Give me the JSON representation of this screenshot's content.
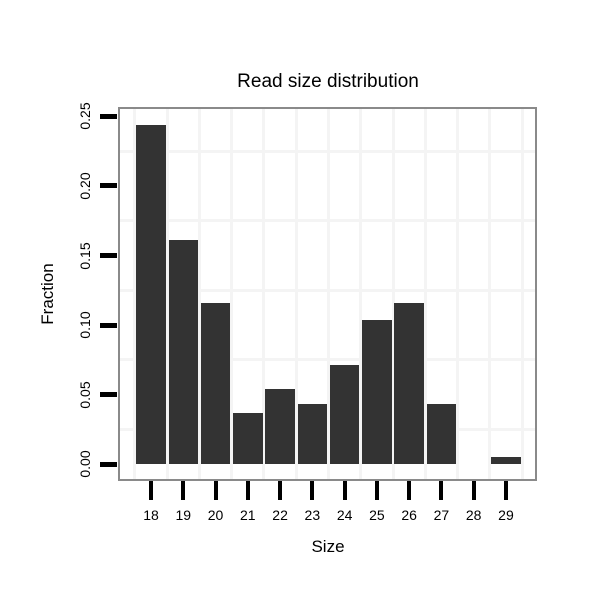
{
  "chart_data": {
    "type": "bar",
    "title": "Read size distribution",
    "xlabel": "Size",
    "ylabel": "Fraction",
    "categories": [
      "18",
      "19",
      "20",
      "21",
      "22",
      "23",
      "24",
      "25",
      "26",
      "27",
      "28",
      "29"
    ],
    "values": [
      0.244,
      0.161,
      0.116,
      0.037,
      0.054,
      0.043,
      0.071,
      0.104,
      0.116,
      0.043,
      0,
      0.005
    ],
    "yticks": [
      0,
      0.05,
      0.1,
      0.15,
      0.2,
      0.25
    ],
    "ytick_labels": [
      "0.00",
      "0.05",
      "0.10",
      "0.15",
      "0.20",
      "0.25"
    ],
    "ylim": [
      -0.011,
      0.257
    ],
    "grid": "faint minor gridlines only, between ticks",
    "legend": "none",
    "colors": {
      "bar": "#333333",
      "panel_border": "#8a8a8a",
      "gridline": "#f4f4f4",
      "tick": "#000000",
      "text": "#000000",
      "background": "#ffffff"
    }
  }
}
